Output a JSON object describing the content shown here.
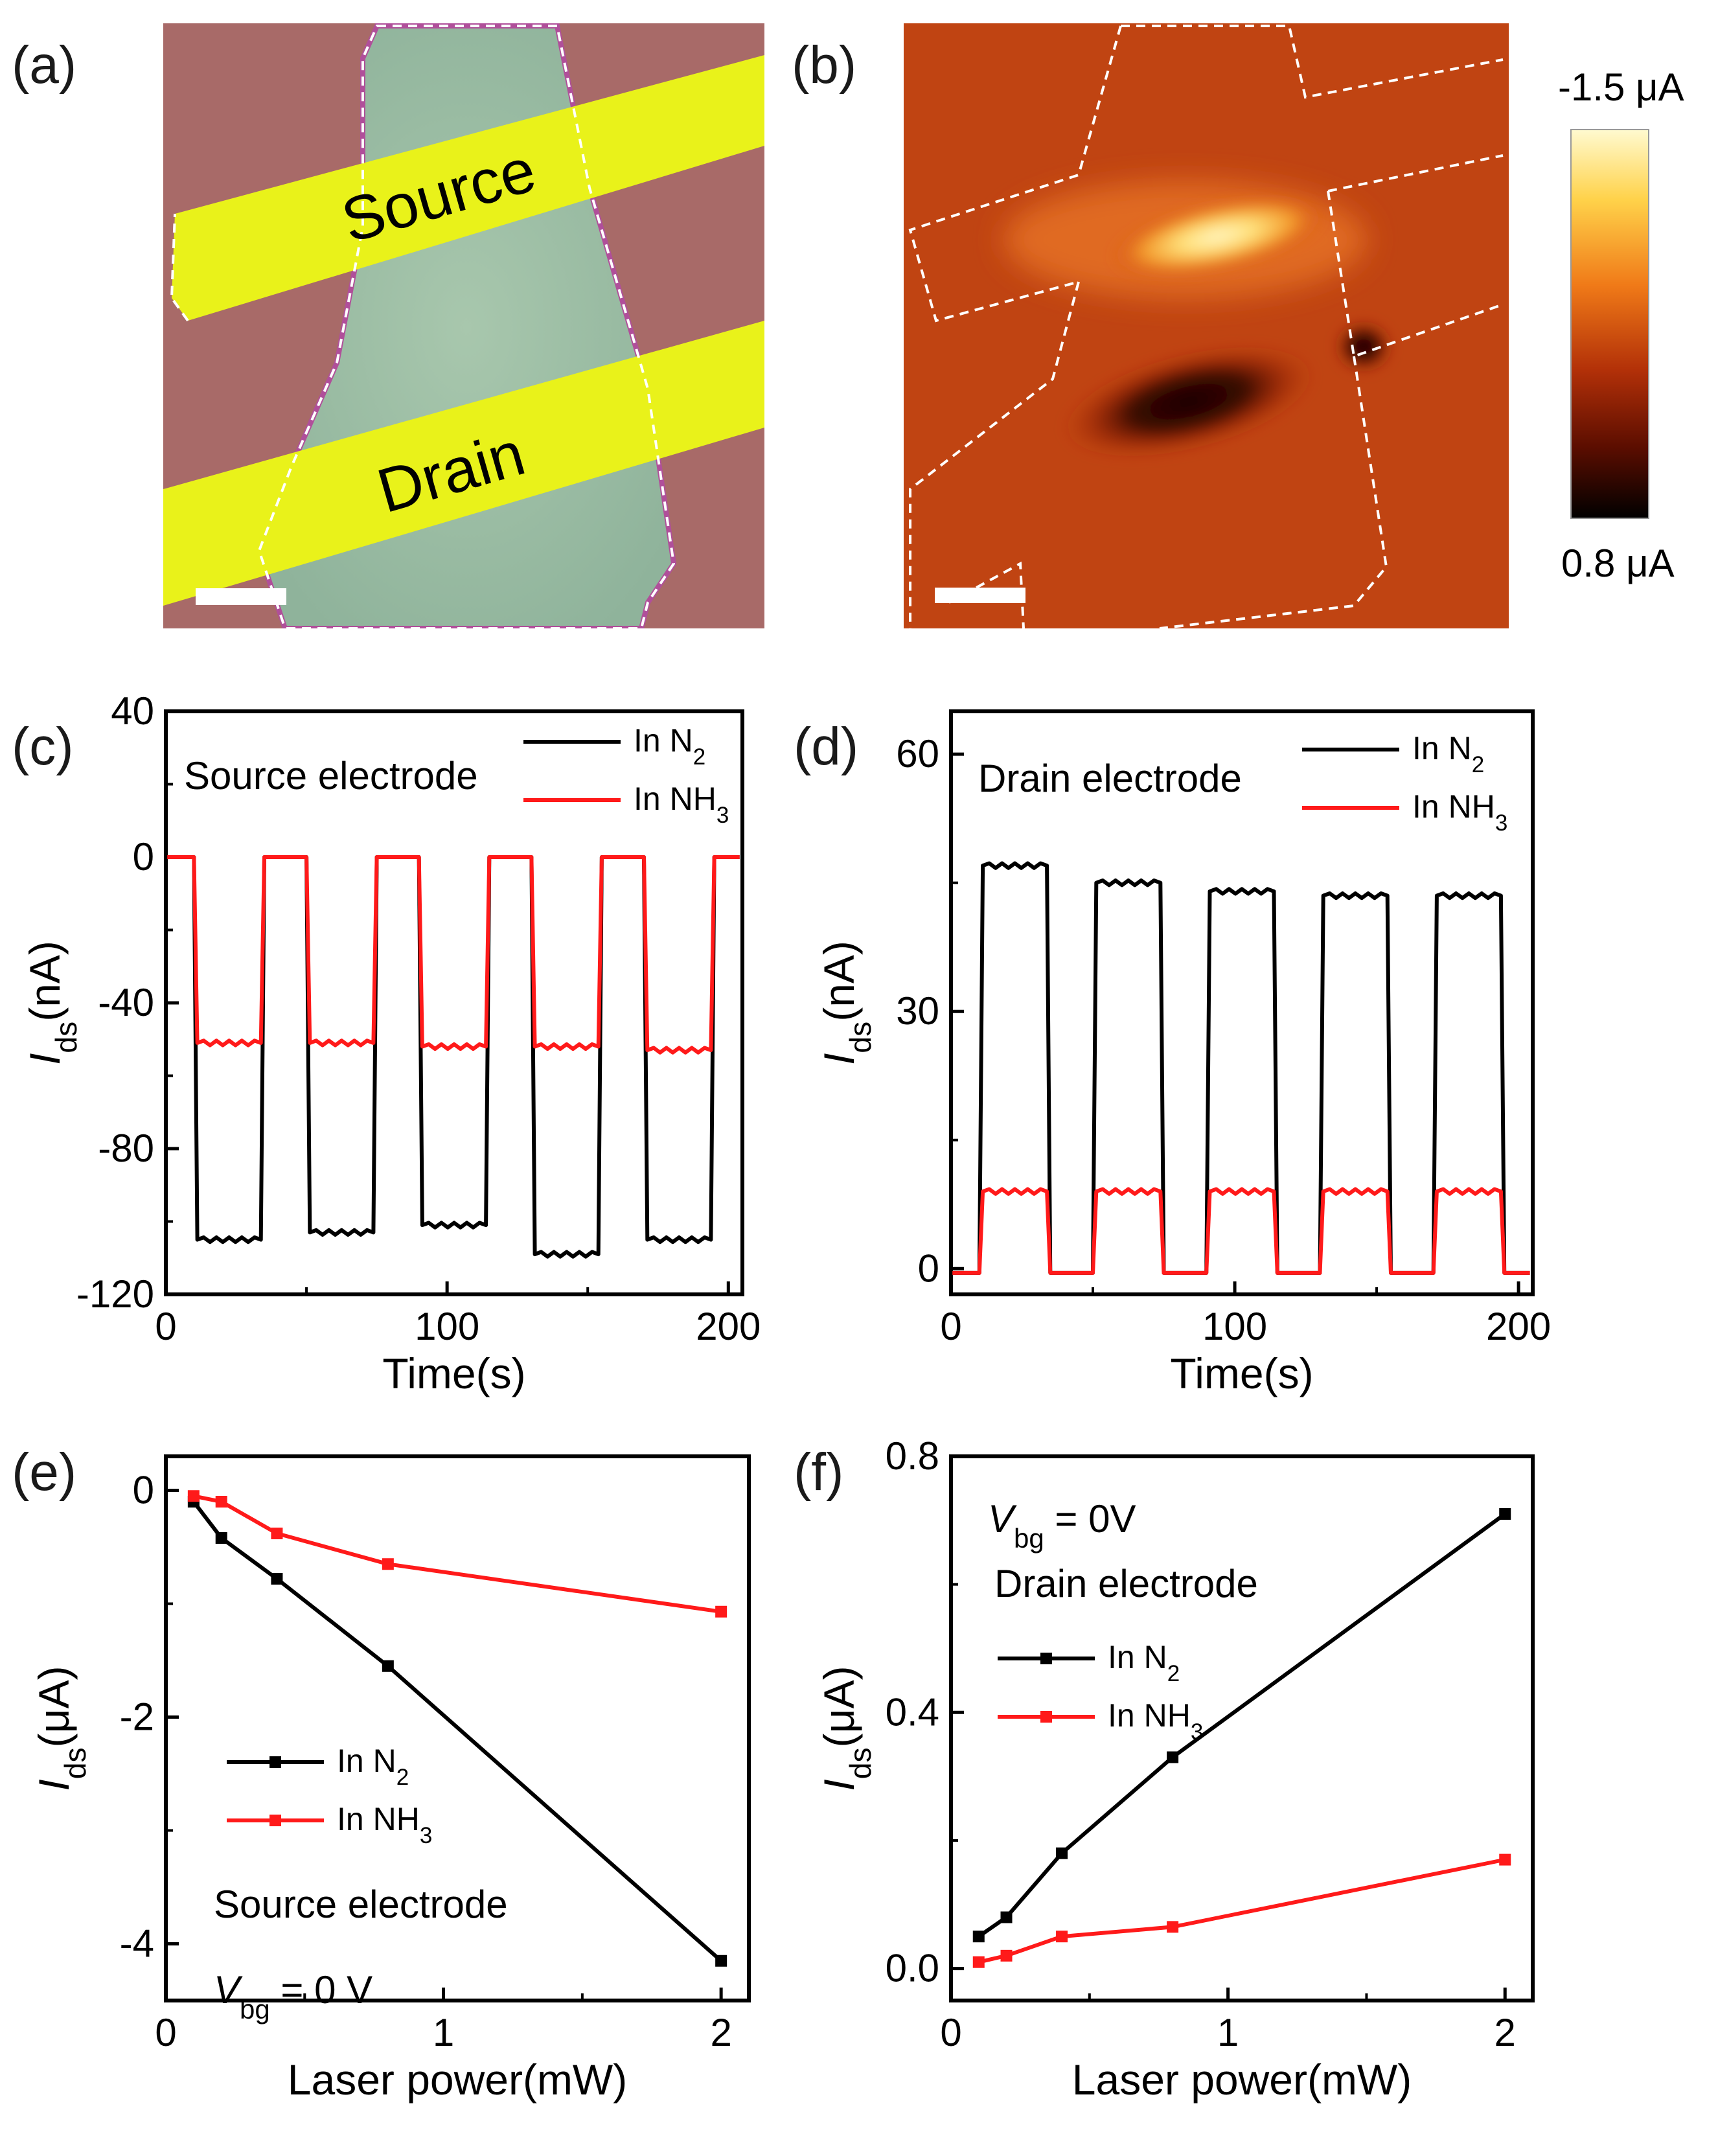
{
  "colors": {
    "n2": "#000000",
    "nh3": "#ff1a1a"
  },
  "panels": {
    "a": {
      "label": "(a)",
      "source_label": "Source",
      "drain_label": "Drain"
    },
    "b": {
      "label": "(b)",
      "cbar_max": "-1.5 μA",
      "cbar_min": "0.8 μA"
    }
  },
  "chart_data": [
    {
      "id": "c",
      "panel_label": "(c)",
      "type": "line",
      "xlabel": "Time(s)",
      "ylabel_main": "I",
      "ylabel_sub": "ds",
      "ylabel_unit": "(nA)",
      "xlim": [
        0,
        205
      ],
      "ylim": [
        -120,
        40
      ],
      "xticks": [
        0,
        100,
        200
      ],
      "yticks": [
        -120,
        -80,
        -40,
        0,
        40
      ],
      "annotation": "Source electrode",
      "legend": [
        "In N",
        "In NH"
      ],
      "legend_subs": [
        "2",
        "3"
      ],
      "on_windows": [
        [
          10,
          35
        ],
        [
          50,
          75
        ],
        [
          90,
          115
        ],
        [
          130,
          155
        ],
        [
          170,
          195
        ]
      ],
      "series": [
        {
          "name": "In N2",
          "color": "#000000",
          "off_level": 0,
          "on_levels": [
            -105,
            -103,
            -101,
            -109,
            -105
          ]
        },
        {
          "name": "In NH3",
          "color": "#ff1a1a",
          "off_level": 0,
          "on_levels": [
            -51,
            -51,
            -52,
            -52,
            -53
          ]
        }
      ]
    },
    {
      "id": "d",
      "panel_label": "(d)",
      "type": "line",
      "xlabel": "Time(s)",
      "ylabel_main": "I",
      "ylabel_sub": "ds",
      "ylabel_unit": "(nA)",
      "xlim": [
        0,
        205
      ],
      "ylim": [
        -3,
        65
      ],
      "xticks": [
        0,
        100,
        200
      ],
      "yticks": [
        0,
        30,
        60
      ],
      "annotation": "Drain electrode",
      "legend": [
        "In N",
        "In NH"
      ],
      "legend_subs": [
        "2",
        "3"
      ],
      "on_windows": [
        [
          10,
          35
        ],
        [
          50,
          75
        ],
        [
          90,
          115
        ],
        [
          130,
          155
        ],
        [
          170,
          195
        ]
      ],
      "series": [
        {
          "name": "In N2",
          "color": "#000000",
          "off_level": -0.5,
          "on_levels": [
            47,
            45,
            44,
            43.5,
            43.5
          ]
        },
        {
          "name": "In NH3",
          "color": "#ff1a1a",
          "off_level": -0.5,
          "on_levels": [
            9,
            9,
            9,
            9,
            9
          ]
        }
      ]
    },
    {
      "id": "e",
      "panel_label": "(e)",
      "type": "line",
      "xlabel": "Laser power(mW)",
      "ylabel_main": "I",
      "ylabel_sub": "ds",
      "ylabel_unit": "(μA)",
      "xlim": [
        0,
        2.1
      ],
      "ylim": [
        -4.5,
        0.3
      ],
      "xticks": [
        0,
        1,
        2
      ],
      "yticks": [
        -4,
        -2,
        0
      ],
      "annotation": "Source electrode",
      "vbg_main": "V",
      "vbg_sub": "bg",
      "vbg_value": " = 0 V",
      "legend": [
        "In N",
        "In NH"
      ],
      "legend_subs": [
        "2",
        "3"
      ],
      "x": [
        0.1,
        0.2,
        0.4,
        0.8,
        2.0
      ],
      "series": [
        {
          "name": "In N2",
          "color": "#000000",
          "values": [
            -0.1,
            -0.42,
            -0.78,
            -1.55,
            -4.15
          ]
        },
        {
          "name": "In NH3",
          "color": "#ff1a1a",
          "values": [
            -0.05,
            -0.1,
            -0.38,
            -0.65,
            -1.07
          ]
        }
      ]
    },
    {
      "id": "f",
      "panel_label": "(f)",
      "type": "line",
      "xlabel": "Laser power(mW)",
      "ylabel_main": "I",
      "ylabel_sub": "ds",
      "ylabel_unit": "(μA)",
      "xlim": [
        0,
        2.1
      ],
      "ylim": [
        -0.05,
        0.8
      ],
      "xticks": [
        0,
        1,
        2
      ],
      "yticks": [
        0.0,
        0.4,
        0.8
      ],
      "ytick_labels": [
        "0.0",
        "0.4",
        "0.8"
      ],
      "annotation": "Drain electrode",
      "vbg_main": "V",
      "vbg_sub": "bg",
      "vbg_value": " = 0V",
      "legend": [
        "In N",
        "In NH"
      ],
      "legend_subs": [
        "2",
        "3"
      ],
      "x": [
        0.1,
        0.2,
        0.4,
        0.8,
        2.0
      ],
      "series": [
        {
          "name": "In N2",
          "color": "#000000",
          "values": [
            0.05,
            0.08,
            0.18,
            0.33,
            0.71
          ]
        },
        {
          "name": "In NH3",
          "color": "#ff1a1a",
          "values": [
            0.01,
            0.02,
            0.05,
            0.065,
            0.17
          ]
        }
      ]
    }
  ]
}
